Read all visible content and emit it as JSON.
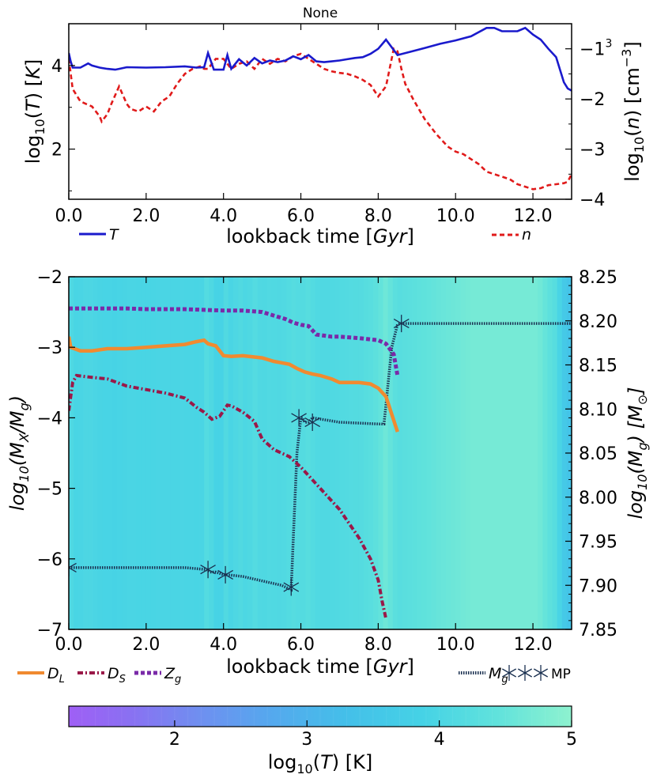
{
  "top_panel": {
    "title": "None",
    "x_tick_labels": [
      "0.0",
      "2.0",
      "4.0",
      "6.0",
      "8.0",
      "10.0",
      "12.0"
    ],
    "y_left_tick_labels": [
      "2",
      "4"
    ],
    "y_right_tick_labels": [
      "−1",
      "−2",
      "−3",
      "−4"
    ],
    "y_right_tick_values": [
      -1,
      -2,
      -3,
      -4
    ],
    "superscript_3": "3",
    "legend_T": "T",
    "legend_n": "n"
  },
  "bottom_panel": {
    "x_tick_labels": [
      "0.0",
      "2.0",
      "4.0",
      "6.0",
      "8.0",
      "10.0",
      "12.0"
    ],
    "y_left_tick_labels": [
      "−2",
      "−3",
      "−4",
      "−5",
      "−6",
      "−7"
    ],
    "y_right_tick_labels": [
      "8.25",
      "8.20",
      "8.15",
      "8.10",
      "8.05",
      "8.00",
      "7.95",
      "7.90",
      "7.85"
    ],
    "legend_DL": "D",
    "legend_DL_sub": "L",
    "legend_DS": "D",
    "legend_DS_sub": "S",
    "legend_Zg": "Z",
    "legend_Zg_sub": "g",
    "legend_Mg": "M",
    "legend_Mg_sub": "g",
    "legend_MP": "MP"
  },
  "colorbar": {
    "tick_labels": [
      "2",
      "3",
      "4",
      "5"
    ],
    "tick_values": [
      2,
      3,
      4,
      5
    ],
    "range": [
      1.2,
      5.0
    ]
  },
  "colors": {
    "T": "#1a1acc",
    "n": "#e01a1a",
    "DL": "#f08a30",
    "DS": "#9a1848",
    "Zg": "#7a2aa8",
    "Mg": "#1a3050",
    "bg": "#5fdce0"
  },
  "chart_data": [
    {
      "type": "line",
      "title": "None",
      "xlabel": "lookback time [Gyr]",
      "ylabel": "log10(T) [K]",
      "y2label": "log10(n) [cm^-3]",
      "xlim": [
        0,
        13
      ],
      "ylim": [
        0.8,
        5.0
      ],
      "y2lim": [
        -4.0,
        -0.5
      ],
      "series": [
        {
          "name": "T",
          "axis": "left",
          "x": [
            0,
            0.05,
            0.1,
            0.3,
            0.5,
            0.6,
            0.8,
            1.0,
            1.2,
            1.3,
            1.5,
            2.0,
            2.5,
            3.0,
            3.3,
            3.5,
            3.6,
            3.75,
            4.0,
            4.1,
            4.2,
            4.4,
            4.6,
            4.8,
            5.0,
            5.2,
            5.4,
            5.6,
            5.8,
            6.0,
            6.2,
            6.4,
            6.6,
            6.8,
            7.0,
            7.2,
            7.4,
            7.6,
            7.8,
            8.0,
            8.2,
            8.5,
            8.8,
            9.2,
            9.6,
            10.0,
            10.4,
            10.8,
            11.0,
            11.2,
            11.4,
            11.6,
            11.8,
            12.0,
            12.2,
            12.4,
            12.6,
            12.8,
            12.9,
            13.0
          ],
          "values": [
            4.3,
            4.1,
            3.95,
            3.95,
            4.05,
            4.0,
            3.95,
            3.92,
            3.9,
            3.92,
            3.96,
            3.95,
            3.96,
            3.98,
            3.95,
            3.96,
            4.3,
            3.9,
            3.9,
            4.25,
            3.92,
            4.15,
            4.0,
            4.18,
            4.05,
            4.12,
            4.08,
            4.12,
            4.22,
            4.15,
            4.25,
            4.1,
            4.08,
            4.1,
            4.12,
            4.15,
            4.18,
            4.2,
            4.28,
            4.4,
            4.62,
            4.25,
            4.32,
            4.42,
            4.52,
            4.6,
            4.7,
            4.9,
            4.9,
            4.82,
            4.82,
            4.82,
            4.9,
            4.74,
            4.62,
            4.4,
            4.2,
            3.6,
            3.45,
            3.4
          ]
        },
        {
          "name": "n",
          "axis": "right",
          "x": [
            0,
            0.1,
            0.3,
            0.6,
            0.8,
            0.85,
            1.0,
            1.1,
            1.3,
            1.5,
            1.6,
            1.8,
            2.0,
            2.2,
            2.4,
            2.6,
            2.8,
            3.0,
            3.2,
            3.4,
            3.5,
            3.6,
            3.8,
            4.0,
            4.2,
            4.4,
            4.6,
            4.8,
            5.0,
            5.2,
            5.4,
            5.6,
            5.8,
            6.0,
            6.2,
            6.4,
            6.6,
            6.8,
            7.0,
            7.2,
            7.4,
            7.6,
            7.8,
            8.0,
            8.2,
            8.4,
            8.5,
            8.6,
            8.7,
            8.9,
            9.2,
            9.5,
            9.8,
            10.0,
            10.2,
            10.4,
            10.6,
            10.8,
            11.0,
            11.2,
            11.4,
            11.6,
            11.8,
            12.0,
            12.2,
            12.4,
            12.6,
            12.8,
            12.9,
            13.0
          ],
          "values": [
            -1.2,
            -1.8,
            -2.05,
            -2.15,
            -2.35,
            -2.45,
            -2.3,
            -2.1,
            -1.75,
            -2.1,
            -2.2,
            -2.25,
            -2.15,
            -2.25,
            -2.05,
            -1.95,
            -1.7,
            -1.5,
            -1.4,
            -1.35,
            -1.4,
            -1.4,
            -1.2,
            -1.2,
            -1.4,
            -1.3,
            -1.25,
            -1.4,
            -1.2,
            -1.3,
            -1.2,
            -1.25,
            -1.15,
            -1.1,
            -1.2,
            -1.3,
            -1.4,
            -1.45,
            -1.48,
            -1.5,
            -1.55,
            -1.62,
            -1.72,
            -1.95,
            -1.75,
            -1.0,
            -1.05,
            -1.4,
            -1.7,
            -2.0,
            -2.4,
            -2.7,
            -2.95,
            -3.05,
            -3.1,
            -3.2,
            -3.3,
            -3.45,
            -3.5,
            -3.55,
            -3.6,
            -3.7,
            -3.75,
            -3.8,
            -3.78,
            -3.72,
            -3.7,
            -3.68,
            -3.65,
            -3.5
          ]
        }
      ]
    },
    {
      "type": "line",
      "xlabel": "lookback time [Gyr]",
      "ylabel": "log10(MX/Mg)",
      "y2label": "log10(Mg) [Msun]",
      "xlim": [
        0,
        13
      ],
      "ylim": [
        -7,
        -2
      ],
      "y2lim": [
        7.85,
        8.25
      ],
      "background": "heatmap of log10(T) vs lookback time",
      "series": [
        {
          "name": "D_L",
          "axis": "left",
          "x": [
            0,
            0.05,
            0.3,
            0.6,
            1.0,
            1.5,
            2.0,
            2.5,
            3.0,
            3.3,
            3.5,
            3.6,
            3.8,
            4.0,
            4.2,
            4.5,
            5.0,
            5.3,
            5.5,
            5.7,
            5.9,
            6.1,
            6.3,
            6.5,
            6.8,
            7.0,
            7.5,
            7.8,
            8.0,
            8.2,
            8.35,
            8.5
          ],
          "values": [
            -2.85,
            -3.0,
            -3.05,
            -3.05,
            -3.02,
            -3.02,
            -3.0,
            -2.98,
            -2.96,
            -2.92,
            -2.9,
            -2.95,
            -2.98,
            -3.12,
            -3.13,
            -3.12,
            -3.15,
            -3.2,
            -3.22,
            -3.24,
            -3.3,
            -3.35,
            -3.38,
            -3.4,
            -3.45,
            -3.5,
            -3.5,
            -3.52,
            -3.58,
            -3.7,
            -3.95,
            -4.2
          ]
        },
        {
          "name": "D_S",
          "axis": "left",
          "x": [
            0,
            0.05,
            0.1,
            0.2,
            0.5,
            1.0,
            1.5,
            2.0,
            2.5,
            3.0,
            3.3,
            3.5,
            3.7,
            3.9,
            4.0,
            4.1,
            4.2,
            4.5,
            4.8,
            5.0,
            5.3,
            5.7,
            6.0,
            6.5,
            7.0,
            7.5,
            7.8,
            8.0,
            8.1,
            8.2
          ],
          "values": [
            -3.9,
            -3.7,
            -3.5,
            -3.4,
            -3.42,
            -3.45,
            -3.55,
            -3.6,
            -3.65,
            -3.72,
            -3.85,
            -3.92,
            -4.02,
            -3.98,
            -3.9,
            -3.82,
            -3.83,
            -3.92,
            -4.05,
            -4.3,
            -4.45,
            -4.55,
            -4.7,
            -5.0,
            -5.3,
            -5.7,
            -6.0,
            -6.3,
            -6.6,
            -6.85
          ]
        },
        {
          "name": "Z_g",
          "axis": "left",
          "x": [
            0,
            0.5,
            1.0,
            1.5,
            2.0,
            2.5,
            3.0,
            3.5,
            4.0,
            4.5,
            5.0,
            5.3,
            5.6,
            5.8,
            6.0,
            6.2,
            6.4,
            6.8,
            7.0,
            7.5,
            8.0,
            8.2,
            8.4,
            8.5
          ],
          "values": [
            -2.45,
            -2.45,
            -2.45,
            -2.45,
            -2.46,
            -2.46,
            -2.46,
            -2.47,
            -2.48,
            -2.48,
            -2.5,
            -2.55,
            -2.6,
            -2.65,
            -2.68,
            -2.7,
            -2.82,
            -2.85,
            -2.85,
            -2.87,
            -2.9,
            -2.95,
            -3.1,
            -3.4
          ]
        },
        {
          "name": "M_g",
          "axis": "right",
          "x": [
            0,
            0.5,
            1.0,
            2.0,
            3.0,
            3.55,
            3.65,
            3.8,
            4.0,
            4.1,
            4.5,
            5.0,
            5.5,
            5.75,
            5.8,
            5.9,
            6.0,
            6.05,
            6.1,
            6.2,
            6.3,
            7.0,
            8.0,
            8.15,
            8.35,
            8.5,
            8.6,
            9.0,
            10.0,
            11.0,
            12.0,
            13.0
          ],
          "values": [
            7.92,
            7.92,
            7.92,
            7.92,
            7.92,
            7.918,
            7.915,
            7.915,
            7.912,
            7.912,
            7.91,
            7.905,
            7.9,
            7.895,
            7.95,
            8.05,
            8.09,
            8.09,
            8.085,
            8.085,
            8.09,
            8.085,
            8.083,
            8.083,
            8.17,
            8.196,
            8.197,
            8.197,
            8.197,
            8.197,
            8.197,
            8.197
          ]
        }
      ],
      "markers": {
        "name": "MP",
        "x": [
          0.0,
          3.6,
          4.05,
          5.75,
          5.95,
          6.3,
          8.6
        ],
        "y": [
          7.92,
          7.918,
          7.912,
          7.898,
          8.09,
          8.085,
          8.197
        ]
      }
    },
    {
      "type": "heatmap",
      "xlabel": "log10(T) [K]",
      "range": [
        1.2,
        5.0
      ],
      "ticks": [
        2,
        3,
        4,
        5
      ]
    }
  ]
}
